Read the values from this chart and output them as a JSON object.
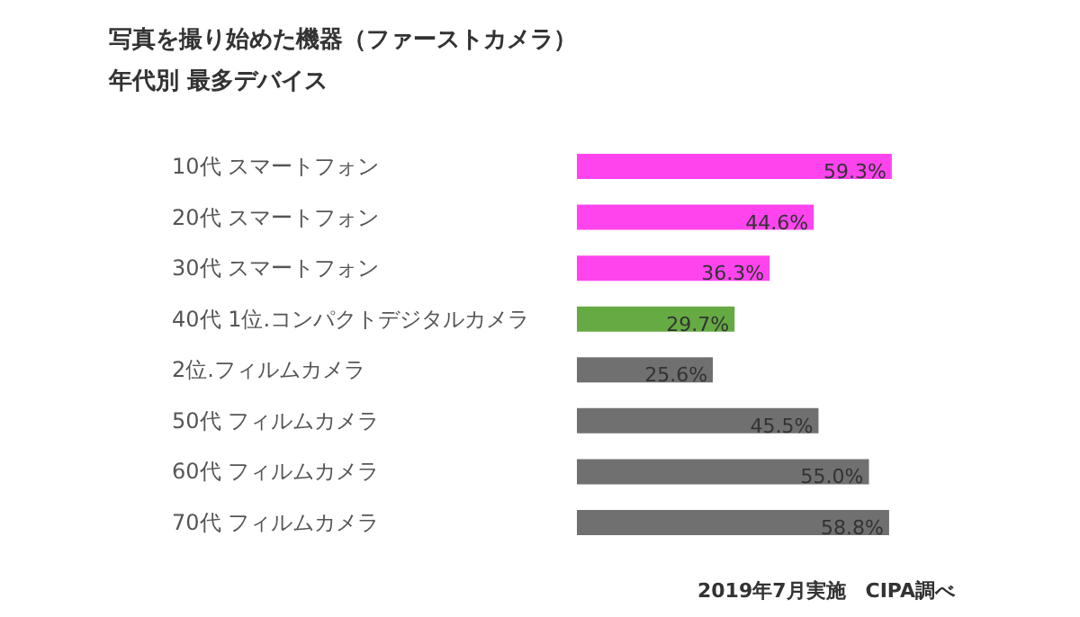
{
  "chart_data": {
    "type": "bar",
    "orientation": "horizontal",
    "title": "写真を撮り始めた機器（ファーストカメラ）",
    "subtitle": "年代別 最多デバイス",
    "categories": [
      "10代 スマートフォン",
      "20代 スマートフォン",
      "30代 スマートフォン",
      "40代 1位.コンパクトデジタルカメラ",
      "2位.フィルムカメラ",
      "50代 フィルムカメラ",
      "60代 フィルムカメラ",
      "70代 フィルムカメラ"
    ],
    "values": [
      59.3,
      44.6,
      36.3,
      29.7,
      25.6,
      45.5,
      55.0,
      58.8
    ],
    "value_labels": [
      "59.3%",
      "44.6%",
      "36.3%",
      "29.7%",
      "25.6%",
      "45.5%",
      "55.0%",
      "58.8%"
    ],
    "colors": [
      "#ff44ee",
      "#ff44ee",
      "#ff44ee",
      "#66aa44",
      "#707070",
      "#707070",
      "#707070",
      "#707070"
    ],
    "annotations": [
      "2019年7月実施　CIPA調べ"
    ]
  }
}
